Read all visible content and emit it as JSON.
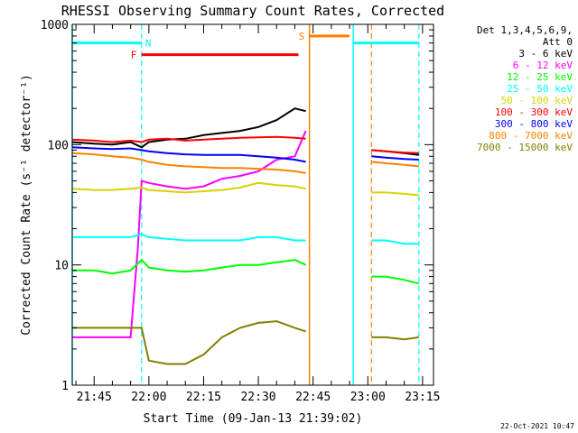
{
  "chart_data": {
    "type": "line",
    "title": "RHESSI Observing Summary Count Rates, Corrected",
    "ylabel": "Corrected Count Rate (s⁻¹ detector⁻¹)",
    "xlabel": "Start Time (09-Jan-13 21:39:02)",
    "yscale": "log",
    "ylim": [
      1,
      1000
    ],
    "xlim": [
      "21:39",
      "23:18"
    ],
    "x_ticks": [
      "21:45",
      "22:00",
      "22:15",
      "22:30",
      "22:45",
      "23:00",
      "23:15"
    ],
    "y_ticks": [
      "1",
      "10",
      "100",
      "1000"
    ],
    "legend_header": [
      "Det 1,3,4,5,6,9,",
      "Att 0"
    ],
    "legend_placement": "right",
    "series": [
      {
        "name": "3 - 6 keV",
        "color": "#000000",
        "x": [
          "21:39",
          "21:45",
          "21:50",
          "21:55",
          "21:58",
          "22:00",
          "22:05",
          "22:10",
          "22:15",
          "22:20",
          "22:25",
          "22:30",
          "22:35",
          "22:40",
          "22:43",
          "23:01",
          "23:05",
          "23:10",
          "23:14"
        ],
        "y": [
          105,
          102,
          100,
          105,
          95,
          105,
          110,
          112,
          120,
          125,
          130,
          140,
          160,
          200,
          190,
          90,
          88,
          85,
          82
        ]
      },
      {
        "name": "6 - 12 keV",
        "color": "#ff00ff",
        "x": [
          "21:39",
          "21:45",
          "21:50",
          "21:55",
          "21:57",
          "21:58",
          "22:00",
          "22:05",
          "22:10",
          "22:15",
          "22:20",
          "22:25",
          "22:30",
          "22:35",
          "22:40",
          "22:43"
        ],
        "y": [
          2.5,
          2.5,
          2.5,
          2.5,
          14,
          50,
          48,
          45,
          43,
          45,
          52,
          55,
          60,
          75,
          80,
          130
        ]
      },
      {
        "name": "12 - 25 keV",
        "color": "#00ff00",
        "x": [
          "21:39",
          "21:45",
          "21:50",
          "21:55",
          "21:58",
          "22:00",
          "22:05",
          "22:10",
          "22:15",
          "22:20",
          "22:25",
          "22:30",
          "22:35",
          "22:40",
          "22:43",
          "23:01",
          "23:05",
          "23:10",
          "23:14"
        ],
        "y": [
          9,
          9,
          8.5,
          9,
          11,
          9.5,
          9,
          8.8,
          9,
          9.5,
          10,
          10,
          10.5,
          11,
          10,
          8,
          8,
          7.5,
          7
        ]
      },
      {
        "name": "25 - 50 keV",
        "color": "#00ffff",
        "x": [
          "21:39",
          "21:45",
          "21:50",
          "21:55",
          "21:58",
          "22:00",
          "22:05",
          "22:10",
          "22:15",
          "22:20",
          "22:25",
          "22:30",
          "22:35",
          "22:40",
          "22:43",
          "23:01",
          "23:05",
          "23:10",
          "23:14"
        ],
        "y": [
          17,
          17,
          17,
          17,
          18,
          17,
          16.5,
          16,
          16,
          16,
          16,
          17,
          17,
          16,
          16,
          16,
          16,
          15,
          15
        ]
      },
      {
        "name": "50 - 100 keV",
        "color": "#d4d400",
        "x": [
          "21:39",
          "21:45",
          "21:50",
          "21:55",
          "21:58",
          "22:00",
          "22:05",
          "22:10",
          "22:15",
          "22:20",
          "22:25",
          "22:30",
          "22:35",
          "22:40",
          "22:43",
          "23:01",
          "23:05",
          "23:10",
          "23:14"
        ],
        "y": [
          43,
          42,
          42,
          43,
          44,
          42,
          41,
          40,
          41,
          42,
          44,
          48,
          46,
          45,
          43,
          40,
          40,
          39,
          38
        ]
      },
      {
        "name": "100 - 300 keV",
        "color": "#ff0000",
        "x": [
          "21:39",
          "21:45",
          "21:50",
          "21:55",
          "21:58",
          "22:00",
          "22:05",
          "22:10",
          "22:15",
          "22:20",
          "22:25",
          "22:30",
          "22:35",
          "22:40",
          "22:43",
          "23:01",
          "23:05",
          "23:10",
          "23:14"
        ],
        "y": [
          110,
          108,
          105,
          108,
          105,
          110,
          112,
          108,
          110,
          112,
          114,
          115,
          116,
          114,
          112,
          90,
          88,
          86,
          85
        ]
      },
      {
        "name": "300 - 800 keV",
        "color": "#0000ff",
        "x": [
          "21:39",
          "21:45",
          "21:50",
          "21:55",
          "21:58",
          "22:00",
          "22:05",
          "22:10",
          "22:15",
          "22:20",
          "22:25",
          "22:30",
          "22:35",
          "22:40",
          "22:43",
          "23:01",
          "23:05",
          "23:10",
          "23:14"
        ],
        "y": [
          95,
          93,
          92,
          93,
          90,
          88,
          85,
          83,
          82,
          82,
          82,
          80,
          78,
          75,
          72,
          80,
          78,
          76,
          75
        ]
      },
      {
        "name": "800 - 7000 keV",
        "color": "#ff8000",
        "x": [
          "21:39",
          "21:45",
          "21:50",
          "21:55",
          "21:58",
          "22:00",
          "22:05",
          "22:10",
          "22:15",
          "22:20",
          "22:25",
          "22:30",
          "22:35",
          "22:40",
          "22:43",
          "23:01",
          "23:05",
          "23:10",
          "23:14"
        ],
        "y": [
          85,
          83,
          80,
          78,
          75,
          72,
          68,
          66,
          65,
          64,
          64,
          63,
          62,
          60,
          58,
          72,
          70,
          68,
          66
        ]
      },
      {
        "name": "7000 - 15000 keV",
        "color": "#808000",
        "x": [
          "21:39",
          "21:45",
          "21:50",
          "21:55",
          "21:58",
          "22:00",
          "22:05",
          "22:10",
          "22:15",
          "22:20",
          "22:25",
          "22:30",
          "22:35",
          "22:40",
          "22:43",
          "23:01",
          "23:05",
          "23:10",
          "23:14"
        ],
        "y": [
          3,
          3,
          3,
          3,
          3,
          1.6,
          1.5,
          1.5,
          1.8,
          2.5,
          3,
          3.3,
          3.4,
          3.0,
          2.8,
          2.5,
          2.5,
          2.4,
          2.5
        ]
      }
    ],
    "annotations": {
      "night_flag": {
        "label": "N",
        "color": "#00ffff",
        "level": 700,
        "intervals": [
          [
            "21:39",
            "21:58"
          ],
          [
            "22:56",
            "23:14"
          ]
        ]
      },
      "flare_flag": {
        "label": "F",
        "color": "#ff0000",
        "level": 560,
        "intervals": [
          [
            "21:58",
            "22:41"
          ]
        ]
      },
      "saa_flag": {
        "label": "S",
        "color": "#ff8000",
        "level": 800,
        "intervals": [
          [
            "22:44",
            "22:55"
          ]
        ]
      },
      "vlines_solid": [
        {
          "t": "21:39",
          "color": "#00ffff"
        },
        {
          "t": "22:44",
          "color": "#ff8000"
        },
        {
          "t": "22:56",
          "color": "#00ffff"
        }
      ],
      "vlines_dashed": [
        {
          "t": "21:58",
          "color": "#00ffff"
        },
        {
          "t": "23:01",
          "color": "#ff8000"
        },
        {
          "t": "23:14",
          "color": "#00ffff"
        }
      ]
    },
    "grid": false
  },
  "timestamp": "22-Oct-2021 10:47"
}
